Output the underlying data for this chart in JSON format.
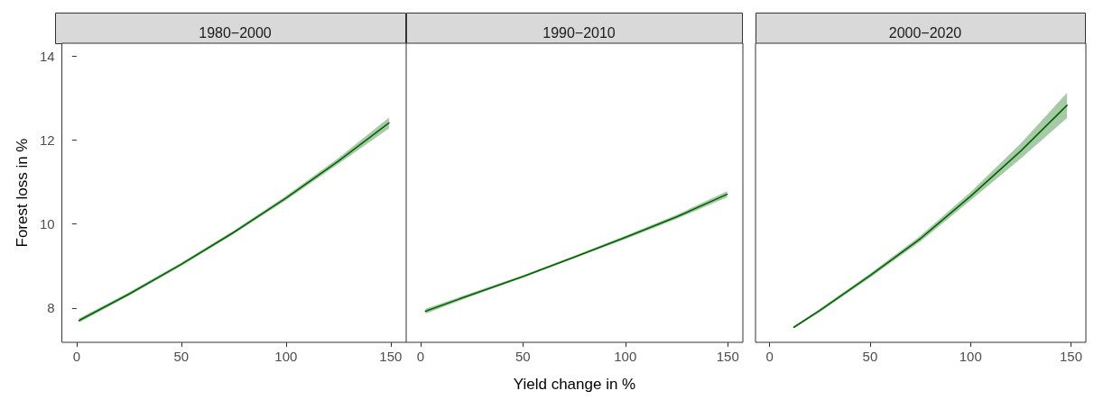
{
  "chart_data": [
    {
      "type": "line",
      "title": "1980−2000",
      "ylabel": "Forest loss in %",
      "x": [
        1.2,
        25,
        50,
        75,
        100,
        125,
        149.2
      ],
      "series": [
        {
          "color": "#006400",
          "values": [
            7.7,
            8.33,
            9.04,
            9.8,
            10.62,
            11.5,
            12.41
          ],
          "lower": [
            7.65,
            8.29,
            9.0,
            9.76,
            10.57,
            11.43,
            12.28
          ],
          "upper": [
            7.75,
            8.37,
            9.08,
            9.84,
            10.67,
            11.57,
            12.54
          ]
        }
      ],
      "xlim": [
        -7,
        157.4
      ],
      "ylim": [
        7.18,
        14.31
      ],
      "xticks": [
        0,
        50,
        100,
        150
      ],
      "yticks": [
        8,
        10,
        12,
        14
      ],
      "grid": false,
      "marker": "none",
      "line_style": "solid"
    },
    {
      "type": "line",
      "title": "1990−2010",
      "xlabel": "Yield change in %",
      "x": [
        2.4,
        25,
        50,
        75,
        100,
        125,
        149.7
      ],
      "series": [
        {
          "color": "#006400",
          "values": [
            7.92,
            8.32,
            8.75,
            9.21,
            9.68,
            10.17,
            10.71
          ],
          "lower": [
            7.86,
            8.28,
            8.72,
            9.18,
            9.64,
            10.12,
            10.64
          ],
          "upper": [
            7.98,
            8.36,
            8.78,
            9.24,
            9.72,
            10.22,
            10.78
          ]
        }
      ],
      "xlim": [
        -7,
        157.4
      ],
      "ylim": [
        7.18,
        14.31
      ],
      "xticks": [
        0,
        50,
        100,
        150
      ],
      "yticks": [
        8,
        10,
        12,
        14
      ],
      "tick_labels": "x",
      "grid": false,
      "marker": "none",
      "line_style": "solid"
    },
    {
      "type": "line",
      "title": "2000−2020",
      "x": [
        12.1,
        25,
        50,
        75,
        100,
        125,
        148
      ],
      "series": [
        {
          "color": "#006400",
          "values": [
            7.54,
            7.94,
            8.77,
            9.65,
            10.66,
            11.74,
            12.83
          ],
          "lower": [
            7.52,
            7.9,
            8.72,
            9.58,
            10.56,
            11.56,
            12.53
          ],
          "upper": [
            7.56,
            7.98,
            8.82,
            9.72,
            10.76,
            11.92,
            13.13
          ]
        }
      ],
      "xlim": [
        -7,
        157.4
      ],
      "ylim": [
        7.18,
        14.31
      ],
      "xticks": [
        0,
        50,
        100,
        150
      ],
      "yticks": [
        8,
        10,
        12,
        14
      ],
      "tick_labels": "x",
      "grid": false,
      "marker": "none",
      "line_style": "solid"
    }
  ]
}
